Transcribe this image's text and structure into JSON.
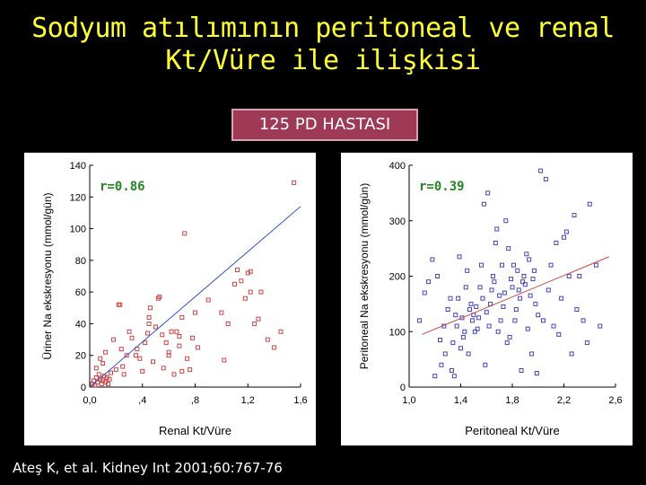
{
  "header": {
    "title_line1": "Sodyum atılımının peritoneal ve renal",
    "title_line2": "Kt/Vüre ile ilişkisi",
    "badge": "125 PD HASTASI"
  },
  "citation": "Ateş K, et al. Kidney Int 2001;60:767-76",
  "colors": {
    "title": "#ffff33",
    "badge_bg": "#9e3a55",
    "renal_points": "#cc4444",
    "renal_line": "#3355cc",
    "peritoneal_points": "#4444bb",
    "peritoneal_line": "#cc4444",
    "r_label": "#228822"
  },
  "chart_data": [
    {
      "type": "scatter",
      "title": "",
      "annotation": "r=0.86",
      "xlabel": "Renal Kt/Vüre",
      "ylabel": "Üriner Na ekskresyonu (mmol/gün)",
      "xlim": [
        0,
        1.6
      ],
      "ylim": [
        0,
        140
      ],
      "x_ticks": [
        "0,0",
        ",4",
        ",8",
        "1,2",
        "1,6"
      ],
      "x_tick_values": [
        0,
        0.4,
        0.8,
        1.2,
        1.6
      ],
      "y_ticks": [
        "0",
        "20",
        "40",
        "60",
        "80",
        "100",
        "120",
        "140"
      ],
      "y_tick_values": [
        0,
        20,
        40,
        60,
        80,
        100,
        120,
        140
      ],
      "trend_line": [
        [
          0,
          0
        ],
        [
          1.6,
          114
        ]
      ],
      "points": [
        [
          0.02,
          2
        ],
        [
          0.03,
          4
        ],
        [
          0.04,
          1
        ],
        [
          0.05,
          6
        ],
        [
          0.06,
          3
        ],
        [
          0.07,
          8
        ],
        [
          0.08,
          5
        ],
        [
          0.09,
          2
        ],
        [
          0.1,
          4
        ],
        [
          0.11,
          7
        ],
        [
          0.12,
          3
        ],
        [
          0.13,
          6
        ],
        [
          0.14,
          2
        ],
        [
          0.15,
          5
        ],
        [
          0.16,
          9
        ],
        [
          0.05,
          12
        ],
        [
          0.08,
          18
        ],
        [
          0.1,
          15
        ],
        [
          0.12,
          22
        ],
        [
          0.18,
          30
        ],
        [
          0.2,
          11
        ],
        [
          0.22,
          52
        ],
        [
          0.23,
          52
        ],
        [
          0.24,
          24
        ],
        [
          0.25,
          13
        ],
        [
          0.26,
          8
        ],
        [
          0.28,
          20
        ],
        [
          0.3,
          35
        ],
        [
          0.32,
          31
        ],
        [
          0.35,
          20
        ],
        [
          0.38,
          18
        ],
        [
          0.4,
          10
        ],
        [
          0.42,
          28
        ],
        [
          0.44,
          34
        ],
        [
          0.45,
          40
        ],
        [
          0.46,
          50
        ],
        [
          0.48,
          16
        ],
        [
          0.5,
          38
        ],
        [
          0.52,
          56
        ],
        [
          0.53,
          57
        ],
        [
          0.55,
          33
        ],
        [
          0.56,
          12
        ],
        [
          0.58,
          28
        ],
        [
          0.6,
          22
        ],
        [
          0.62,
          35
        ],
        [
          0.64,
          8
        ],
        [
          0.66,
          35
        ],
        [
          0.68,
          26
        ],
        [
          0.7,
          44
        ],
        [
          0.72,
          97
        ],
        [
          0.74,
          18
        ],
        [
          0.76,
          11
        ],
        [
          0.78,
          31
        ],
        [
          0.8,
          47
        ],
        [
          0.82,
          25
        ],
        [
          0.68,
          32
        ],
        [
          0.7,
          10
        ],
        [
          0.6,
          20
        ],
        [
          0.45,
          44
        ],
        [
          0.36,
          24
        ],
        [
          0.9,
          55
        ],
        [
          1.0,
          47
        ],
        [
          1.05,
          40
        ],
        [
          1.02,
          17
        ],
        [
          1.1,
          65
        ],
        [
          1.12,
          74
        ],
        [
          1.15,
          67
        ],
        [
          1.18,
          56
        ],
        [
          1.2,
          72
        ],
        [
          1.22,
          73
        ],
        [
          1.22,
          60
        ],
        [
          1.25,
          40
        ],
        [
          1.28,
          43
        ],
        [
          1.3,
          60
        ],
        [
          1.35,
          30
        ],
        [
          1.4,
          25
        ],
        [
          1.45,
          35
        ],
        [
          1.55,
          129
        ]
      ]
    },
    {
      "type": "scatter",
      "title": "",
      "annotation": "r=0.39",
      "xlabel": "Peritoneal Kt/Vüre",
      "ylabel": "Peritoneal Na ekskresyonu (mmol/gün)",
      "xlim": [
        1.0,
        2.6
      ],
      "ylim": [
        0,
        400
      ],
      "x_ticks": [
        "1,0",
        "1,4",
        "1,8",
        "2,2",
        "2,6"
      ],
      "x_tick_values": [
        1.0,
        1.4,
        1.8,
        2.2,
        2.6
      ],
      "y_ticks": [
        "0",
        "100",
        "200",
        "300",
        "400"
      ],
      "y_tick_values": [
        0,
        100,
        200,
        300,
        400
      ],
      "trend_line": [
        [
          1.1,
          95
        ],
        [
          2.55,
          235
        ]
      ],
      "points": [
        [
          1.08,
          120
        ],
        [
          1.12,
          170
        ],
        [
          1.15,
          190
        ],
        [
          1.18,
          230
        ],
        [
          1.2,
          20
        ],
        [
          1.22,
          200
        ],
        [
          1.24,
          85
        ],
        [
          1.25,
          40
        ],
        [
          1.27,
          110
        ],
        [
          1.28,
          60
        ],
        [
          1.3,
          140
        ],
        [
          1.32,
          160
        ],
        [
          1.33,
          30
        ],
        [
          1.34,
          80
        ],
        [
          1.35,
          20
        ],
        [
          1.36,
          130
        ],
        [
          1.37,
          110
        ],
        [
          1.38,
          160
        ],
        [
          1.39,
          235
        ],
        [
          1.4,
          70
        ],
        [
          1.41,
          125
        ],
        [
          1.42,
          90
        ],
        [
          1.43,
          100
        ],
        [
          1.44,
          180
        ],
        [
          1.45,
          210
        ],
        [
          1.46,
          60
        ],
        [
          1.47,
          140
        ],
        [
          1.48,
          150
        ],
        [
          1.49,
          120
        ],
        [
          1.5,
          130
        ],
        [
          1.51,
          100
        ],
        [
          1.52,
          145
        ],
        [
          1.53,
          105
        ],
        [
          1.54,
          125
        ],
        [
          1.55,
          180
        ],
        [
          1.56,
          220
        ],
        [
          1.57,
          160
        ],
        [
          1.58,
          330
        ],
        [
          1.59,
          40
        ],
        [
          1.6,
          135
        ],
        [
          1.61,
          350
        ],
        [
          1.62,
          110
        ],
        [
          1.63,
          150
        ],
        [
          1.64,
          175
        ],
        [
          1.65,
          200
        ],
        [
          1.66,
          190
        ],
        [
          1.67,
          260
        ],
        [
          1.68,
          285
        ],
        [
          1.69,
          100
        ],
        [
          1.7,
          165
        ],
        [
          1.71,
          120
        ],
        [
          1.72,
          220
        ],
        [
          1.73,
          145
        ],
        [
          1.74,
          170
        ],
        [
          1.75,
          300
        ],
        [
          1.76,
          80
        ],
        [
          1.77,
          250
        ],
        [
          1.78,
          90
        ],
        [
          1.79,
          195
        ],
        [
          1.8,
          180
        ],
        [
          1.81,
          220
        ],
        [
          1.82,
          120
        ],
        [
          1.83,
          140
        ],
        [
          1.84,
          210
        ],
        [
          1.85,
          175
        ],
        [
          1.86,
          160
        ],
        [
          1.87,
          30
        ],
        [
          1.88,
          190
        ],
        [
          1.89,
          200
        ],
        [
          1.9,
          185
        ],
        [
          1.91,
          240
        ],
        [
          1.92,
          105
        ],
        [
          1.93,
          230
        ],
        [
          1.94,
          165
        ],
        [
          1.95,
          60
        ],
        [
          1.96,
          195
        ],
        [
          1.97,
          210
        ],
        [
          1.98,
          150
        ],
        [
          1.99,
          25
        ],
        [
          2.0,
          130
        ],
        [
          2.02,
          390
        ],
        [
          2.04,
          120
        ],
        [
          2.06,
          375
        ],
        [
          2.08,
          175
        ],
        [
          2.1,
          220
        ],
        [
          2.12,
          110
        ],
        [
          2.14,
          260
        ],
        [
          2.16,
          95
        ],
        [
          2.18,
          160
        ],
        [
          2.2,
          270
        ],
        [
          2.22,
          280
        ],
        [
          2.24,
          200
        ],
        [
          2.26,
          60
        ],
        [
          2.28,
          310
        ],
        [
          2.3,
          140
        ],
        [
          2.32,
          200
        ],
        [
          2.35,
          120
        ],
        [
          2.38,
          80
        ],
        [
          2.4,
          330
        ],
        [
          2.45,
          220
        ],
        [
          2.48,
          110
        ]
      ]
    }
  ]
}
